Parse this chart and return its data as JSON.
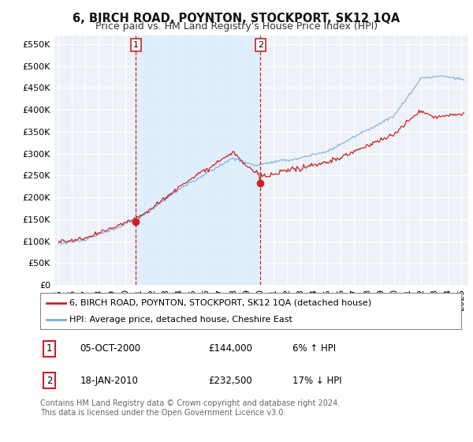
{
  "title": "6, BIRCH ROAD, POYNTON, STOCKPORT, SK12 1QA",
  "subtitle": "Price paid vs. HM Land Registry's House Price Index (HPI)",
  "ylabel_ticks": [
    "£0",
    "£50K",
    "£100K",
    "£150K",
    "£200K",
    "£250K",
    "£300K",
    "£350K",
    "£400K",
    "£450K",
    "£500K",
    "£550K"
  ],
  "ytick_vals": [
    0,
    50000,
    100000,
    150000,
    200000,
    250000,
    300000,
    350000,
    400000,
    450000,
    500000,
    550000
  ],
  "ylim": [
    0,
    570000
  ],
  "xlim_start": 1994.7,
  "xlim_end": 2025.5,
  "sale1_date": 2000.76,
  "sale1_price": 144000,
  "sale1_label": "1",
  "sale2_date": 2010.04,
  "sale2_price": 232500,
  "sale2_label": "2",
  "legend_line1": "6, BIRCH ROAD, POYNTON, STOCKPORT, SK12 1QA (detached house)",
  "legend_line2": "HPI: Average price, detached house, Cheshire East",
  "table_row1": [
    "1",
    "05-OCT-2000",
    "£144,000",
    "6% ↑ HPI"
  ],
  "table_row2": [
    "2",
    "18-JAN-2010",
    "£232,500",
    "17% ↓ HPI"
  ],
  "footnote": "Contains HM Land Registry data © Crown copyright and database right 2024.\nThis data is licensed under the Open Government Licence v3.0.",
  "line_red_color": "#cc2222",
  "line_blue_color": "#7aacdc",
  "vline_color": "#cc2222",
  "shade_color": "#ddeeff",
  "background_color": "#ffffff",
  "plot_bg_color": "#eef2f8",
  "grid_color": "#ffffff",
  "legend_box_color": "#555555",
  "table_box_color": "#cc2222",
  "title_fontsize": 10.5,
  "subtitle_fontsize": 9,
  "tick_fontsize": 8,
  "legend_fontsize": 8,
  "table_fontsize": 8.5,
  "footnote_fontsize": 7
}
